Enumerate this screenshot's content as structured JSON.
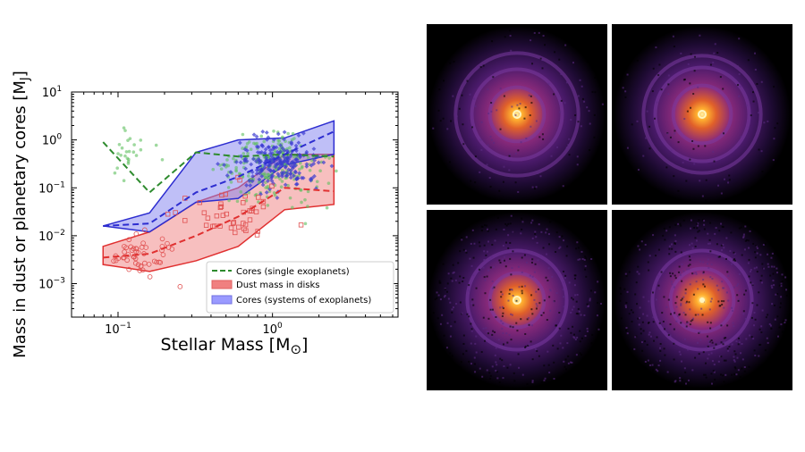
{
  "chart_data": {
    "type": "scatter",
    "xscale": "log",
    "yscale": "log",
    "xlim": [
      0.05,
      6.5
    ],
    "ylim": [
      0.0002,
      10
    ],
    "xlabel_prefix": "Stellar Mass [M",
    "xlabel_sym": "⊙",
    "xlabel_suffix": "]",
    "ylabel_prefix": "Mass in dust or planetary cores [M",
    "ylabel_sub": "J",
    "ylabel_suffix": "]",
    "xticks": [
      {
        "value": 0.1,
        "base": "10",
        "exp": "−1"
      },
      {
        "value": 1,
        "base": "10",
        "exp": "0"
      }
    ],
    "yticks": [
      {
        "value": 0.001,
        "base": "10",
        "exp": "−3"
      },
      {
        "value": 0.01,
        "base": "10",
        "exp": "−2"
      },
      {
        "value": 0.1,
        "base": "10",
        "exp": "−1"
      },
      {
        "value": 1,
        "base": "10",
        "exp": "0"
      },
      {
        "value": 10,
        "base": "10",
        "exp": "1"
      }
    ],
    "legend_position": "lower-right",
    "series": [
      {
        "name": "Cores (single exoplanets)",
        "color": "#2e8b2e",
        "style": "dashed-median",
        "median_x": [
          0.08,
          0.16,
          0.32,
          0.6,
          1.2,
          2.5
        ],
        "median_y": [
          0.9,
          0.08,
          0.55,
          0.45,
          0.5,
          0.45
        ]
      },
      {
        "name": "Dust mass in disks",
        "color": "#e03030",
        "fill": "#f08080",
        "band_x": [
          0.08,
          0.16,
          0.32,
          0.6,
          1.2,
          2.5
        ],
        "band_low": [
          0.0025,
          0.0018,
          0.003,
          0.006,
          0.035,
          0.045
        ],
        "band_high": [
          0.006,
          0.012,
          0.05,
          0.1,
          0.5,
          0.5
        ],
        "median_y": [
          0.0035,
          0.0042,
          0.01,
          0.025,
          0.1,
          0.085
        ]
      },
      {
        "name": "Cores (systems of exoplanets)",
        "color": "#2d2dd0",
        "fill": "#8080f0",
        "band_x": [
          0.08,
          0.16,
          0.32,
          0.6,
          1.2,
          2.5
        ],
        "band_low": [
          0.016,
          0.012,
          0.05,
          0.06,
          0.3,
          0.5
        ],
        "band_high": [
          0.016,
          0.03,
          0.55,
          1.0,
          1.1,
          2.5
        ],
        "median_y": [
          0.016,
          0.018,
          0.08,
          0.17,
          0.5,
          1.5
        ]
      }
    ]
  },
  "images": [
    {
      "ring_radii": [
        0.3,
        0.5,
        0.68
      ],
      "noise": 0.15,
      "center_ring": true
    },
    {
      "ring_radii": [
        0.32,
        0.52,
        0.65
      ],
      "noise": 0.12,
      "center_ring": true
    },
    {
      "ring_radii": [
        0.3,
        0.55
      ],
      "noise": 0.45,
      "center_ring": true
    },
    {
      "ring_radii": [
        0.35,
        0.55
      ],
      "noise": 0.55,
      "center_ring": false
    }
  ]
}
